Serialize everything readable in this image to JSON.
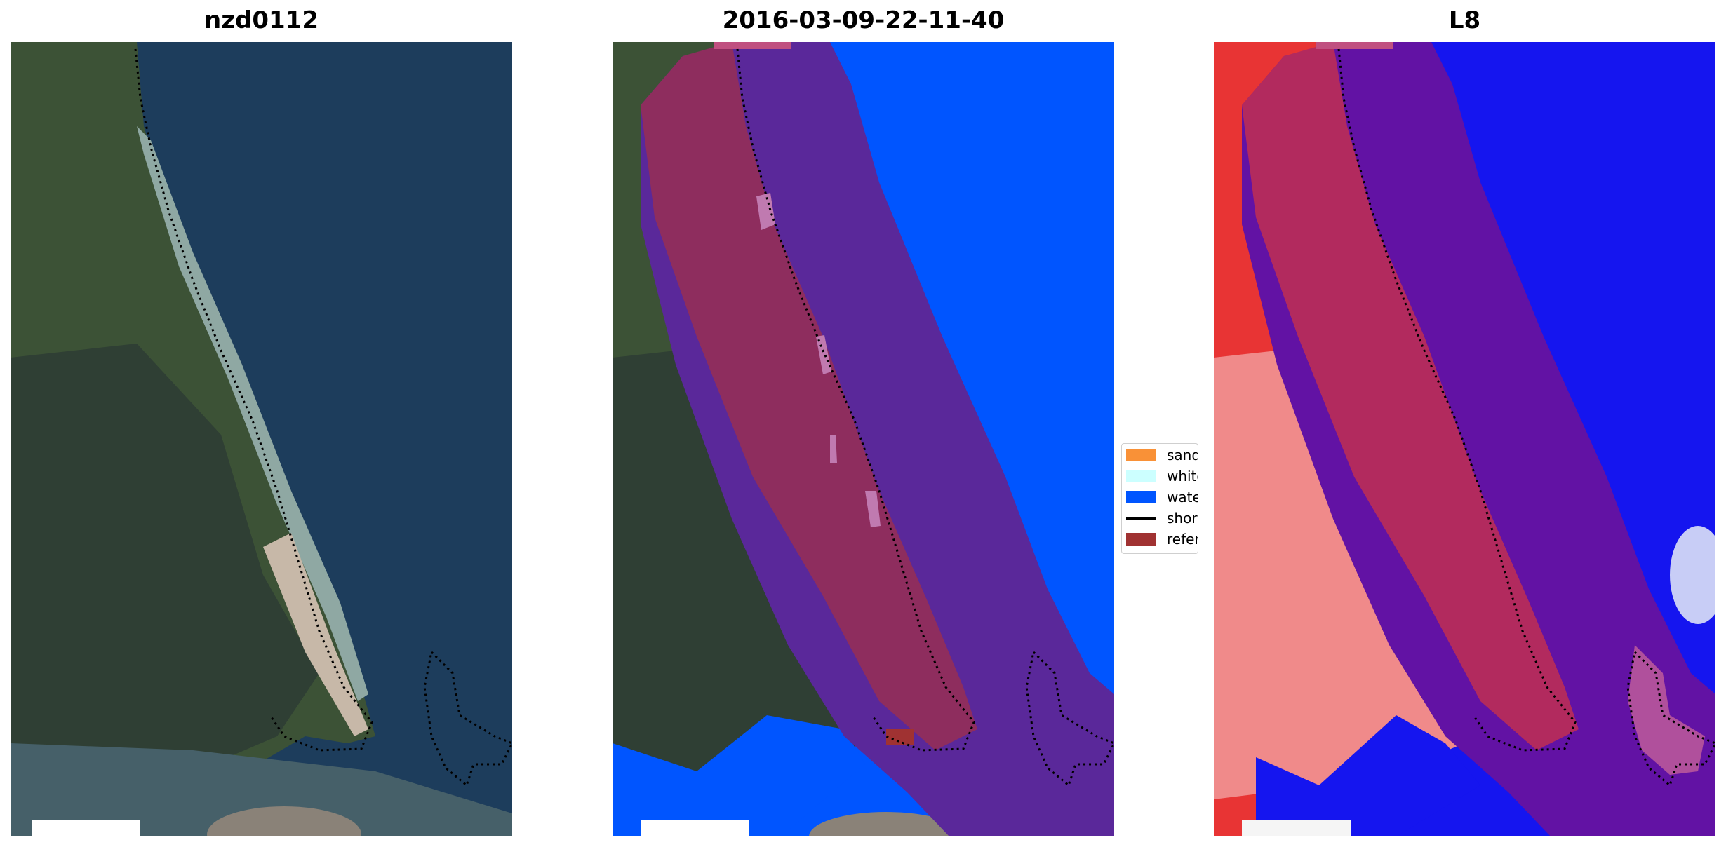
{
  "panels": [
    {
      "title": "nzd0112"
    },
    {
      "title": "2016-03-09-22-11-40"
    },
    {
      "title": "L8"
    }
  ],
  "legend": {
    "items": [
      {
        "label": "sand",
        "color": "#f99137",
        "kind": "patch"
      },
      {
        "label": "whitewater",
        "color": "#ccffff",
        "kind": "patch"
      },
      {
        "label": "water",
        "color": "#0055ff",
        "kind": "patch"
      },
      {
        "label": "shoreline",
        "color": "#000000",
        "kind": "line"
      },
      {
        "label": "reference shoreline buffer",
        "color": "#a03232",
        "kind": "patch"
      }
    ]
  },
  "colors": {
    "land": "#3c5236",
    "ocean": "#1d3d5c",
    "water_class": "#0055ff",
    "buffer_overlay": "#6a2a8a",
    "land_overlay": "#8e2d5e",
    "ndwi_positive": "#e83434",
    "ndwi_negative": "#1515ef"
  }
}
